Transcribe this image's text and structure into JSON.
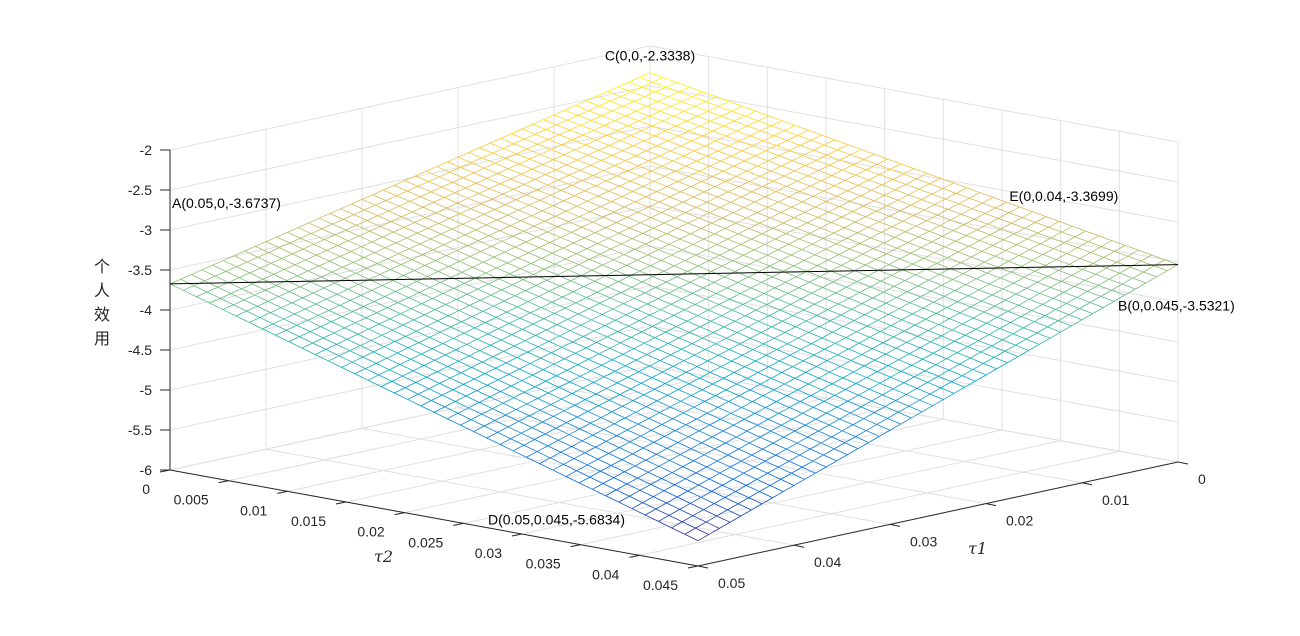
{
  "chart_data": {
    "type": "surface",
    "title": "",
    "xlabel": "τ1",
    "xlabel_sub": "1",
    "ylabel": "τ2",
    "ylabel_sub": "2",
    "zlabel": "个人效用",
    "xlim": [
      0,
      0.05
    ],
    "ylim": [
      0,
      0.045
    ],
    "zlim": [
      -6,
      -2
    ],
    "x_ticks": [
      "0",
      "0.01",
      "0.02",
      "0.03",
      "0.04",
      "0.05"
    ],
    "x_tick_values": [
      0,
      0.01,
      0.02,
      0.03,
      0.04,
      0.05
    ],
    "y_ticks": [
      "0",
      "0.005",
      "0.01",
      "0.015",
      "0.02",
      "0.025",
      "0.03",
      "0.035",
      "0.04",
      "0.045"
    ],
    "y_tick_values": [
      0,
      0.005,
      0.01,
      0.015,
      0.02,
      0.025,
      0.03,
      0.035,
      0.04,
      0.045
    ],
    "z_ticks": [
      "-2",
      "-2.5",
      "-3",
      "-3.5",
      "-4",
      "-4.5",
      "-5",
      "-5.5",
      "-6"
    ],
    "z_tick_values": [
      -2,
      -2.5,
      -3,
      -3.5,
      -4,
      -4.5,
      -5,
      -5.5,
      -6
    ],
    "grid": true,
    "colormap": "parula",
    "surface_corners": {
      "x0_y0": -2.3338,
      "x005_y0": -3.6737,
      "x0_y0045": -3.5321,
      "x005_y0045": -5.6834
    },
    "annotations": [
      {
        "id": "A",
        "text": "A(0.05,0,-3.6737)",
        "x": 0.05,
        "y": 0,
        "z": -3.6737
      },
      {
        "id": "B",
        "text": "B(0,0.045,-3.5321)",
        "x": 0,
        "y": 0.045,
        "z": -3.5321
      },
      {
        "id": "C",
        "text": "C(0,0,-2.3338)",
        "x": 0,
        "y": 0,
        "z": -2.3338
      },
      {
        "id": "D",
        "text": "D(0.05,0.045,-5.6834)",
        "x": 0.05,
        "y": 0.045,
        "z": -5.6834
      },
      {
        "id": "E",
        "text": "E(0,0.04,-3.3699)",
        "x": 0,
        "y": 0.04,
        "z": -3.3699
      }
    ],
    "colors": {
      "grid": "#e0e0e0",
      "axis": "#262626",
      "level_line": "#000000"
    }
  }
}
